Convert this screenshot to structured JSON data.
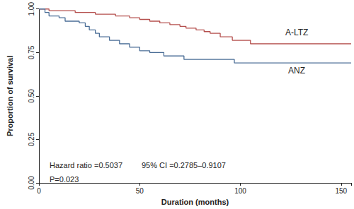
{
  "chart_data": {
    "type": "line",
    "line_style": "step",
    "x_label": "Duration (months)",
    "y_label": "Proportion of survival",
    "annotations": [
      "Hazard ratio =0.5037",
      "95% CI =0.2785–0.9107",
      "P=0.023"
    ],
    "xlim": [
      0,
      155
    ],
    "xticks": [
      0,
      50,
      100,
      150
    ],
    "ylim": [
      0,
      1
    ],
    "yticks": [
      {
        "value": 0,
        "label": "0.00"
      },
      {
        "value": 0.25,
        "label": "0.25"
      },
      {
        "value": 0.5,
        "label": "0.50"
      },
      {
        "value": 0.75,
        "label": "0.75"
      },
      {
        "value": 1,
        "label": "1.00"
      }
    ],
    "grid": false,
    "series": [
      {
        "name": "A-LTZ",
        "color": "#b5504e",
        "x": [
          0,
          5,
          18,
          28,
          38,
          45,
          50,
          55,
          60,
          65,
          70,
          73,
          78,
          82,
          85,
          90,
          96,
          105,
          155
        ],
        "values": [
          1.0,
          0.99,
          0.98,
          0.97,
          0.96,
          0.95,
          0.94,
          0.93,
          0.92,
          0.91,
          0.9,
          0.89,
          0.88,
          0.87,
          0.86,
          0.84,
          0.82,
          0.8,
          0.8
        ]
      },
      {
        "name": "ANZ",
        "color": "#4a6d96",
        "x": [
          0,
          3,
          5,
          10,
          13,
          20,
          23,
          25,
          28,
          30,
          35,
          40,
          45,
          50,
          55,
          62,
          72,
          97,
          155
        ],
        "values": [
          1.0,
          0.98,
          0.96,
          0.95,
          0.93,
          0.92,
          0.9,
          0.88,
          0.86,
          0.84,
          0.82,
          0.8,
          0.78,
          0.76,
          0.75,
          0.73,
          0.71,
          0.69,
          0.69
        ]
      }
    ]
  }
}
